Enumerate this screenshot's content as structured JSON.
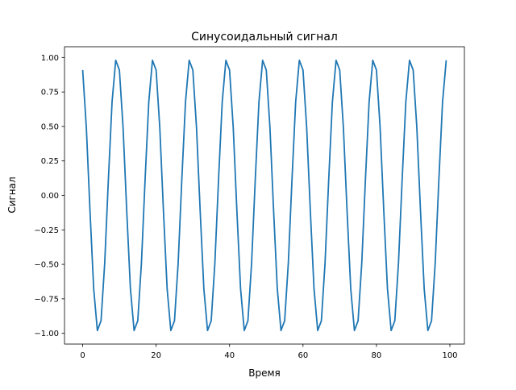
{
  "chart_data": {
    "type": "line",
    "title": "Синусоидальный сигнал",
    "xlabel": "Время",
    "ylabel": "Сигнал",
    "xlim": [
      -4.95,
      103.95
    ],
    "ylim": [
      -1.078,
      1.078
    ],
    "xticks": [
      0,
      20,
      40,
      60,
      80,
      100
    ],
    "xtick_labels": [
      "0",
      "20",
      "40",
      "60",
      "80",
      "100"
    ],
    "yticks": [
      -1.0,
      -0.75,
      -0.5,
      -0.25,
      0.0,
      0.25,
      0.5,
      0.75,
      1.0
    ],
    "ytick_labels": [
      "−1.00",
      "−0.75",
      "−0.50",
      "−0.25",
      "0.00",
      "0.25",
      "0.50",
      "0.75",
      "1.00"
    ],
    "grid": false,
    "series": [
      {
        "color": "#1f77b4",
        "y": [
          0.909,
          0.491,
          -0.115,
          -0.677,
          -0.98,
          -0.909,
          -0.491,
          0.115,
          0.677,
          0.98,
          0.909,
          0.491,
          -0.115,
          -0.677,
          -0.98,
          -0.909,
          -0.491,
          0.115,
          0.677,
          0.98,
          0.909,
          0.491,
          -0.115,
          -0.677,
          -0.98,
          -0.909,
          -0.491,
          0.115,
          0.677,
          0.98,
          0.909,
          0.491,
          -0.115,
          -0.677,
          -0.98,
          -0.909,
          -0.491,
          0.115,
          0.677,
          0.98,
          0.909,
          0.491,
          -0.115,
          -0.677,
          -0.98,
          -0.909,
          -0.491,
          0.115,
          0.677,
          0.98,
          0.909,
          0.491,
          -0.115,
          -0.677,
          -0.98,
          -0.909,
          -0.491,
          0.115,
          0.677,
          0.98,
          0.909,
          0.491,
          -0.115,
          -0.677,
          -0.98,
          -0.909,
          -0.491,
          0.115,
          0.677,
          0.98,
          0.909,
          0.491,
          -0.115,
          -0.677,
          -0.98,
          -0.909,
          -0.491,
          0.115,
          0.677,
          0.98,
          0.909,
          0.491,
          -0.115,
          -0.677,
          -0.98,
          -0.909,
          -0.491,
          0.115,
          0.677,
          0.98,
          0.909,
          0.491,
          -0.115,
          -0.677,
          -0.98,
          -0.909,
          -0.491,
          0.115,
          0.677,
          0.98
        ]
      }
    ]
  }
}
